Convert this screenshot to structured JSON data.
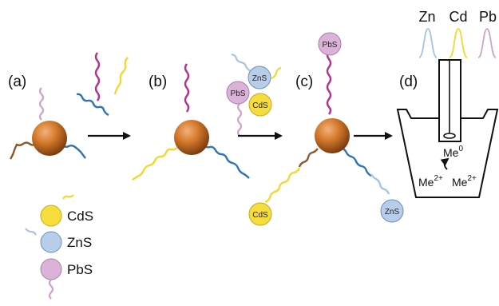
{
  "panels": {
    "a": "(a)",
    "b": "(b)",
    "c": "(c)",
    "d": "(d)"
  },
  "quantum_dots": {
    "cds": "CdS",
    "zns": "ZnS",
    "pbs": "PbS"
  },
  "legend": {
    "cds": "CdS",
    "zns": "ZnS",
    "pbs": "PbS"
  },
  "electrode": {
    "metals": [
      "Zn",
      "Cd",
      "Pb"
    ],
    "me0_base": "Me",
    "me0_sup": "0",
    "ion_base": "Me",
    "ion_sup": "2+"
  },
  "colors": {
    "bead": "#c96a1e",
    "cds": "#f6dd3c",
    "zns": "#b7cdea",
    "pbs": "#dcb3d8",
    "brown_strand": "#8b5a2b",
    "blue_strand": "#2f73b5",
    "pink_strand": "#cfa3cb",
    "magenta_strand": "#b0338e",
    "yellow_strand": "#f2d833",
    "lightblue_strand": "#a9c3e3"
  },
  "icons": [
    "arrow-icon",
    "curved-arrow-icon",
    "stripping-peak-icon"
  ]
}
